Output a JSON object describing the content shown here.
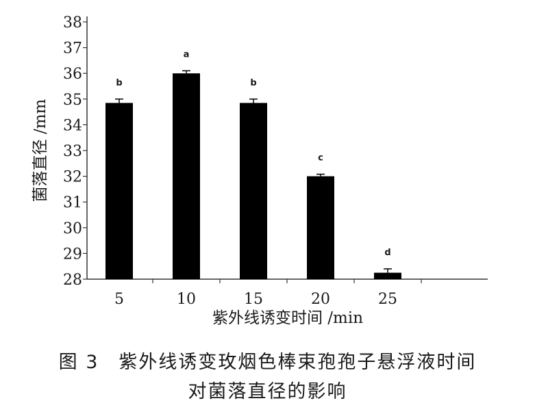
{
  "chart_data": {
    "type": "bar",
    "categories": [
      "5",
      "10",
      "15",
      "20",
      "25"
    ],
    "values": [
      34.85,
      36.0,
      34.85,
      32.0,
      28.25
    ],
    "errors": [
      0.15,
      0.1,
      0.15,
      0.08,
      0.15
    ],
    "significance": [
      "b",
      "a",
      "b",
      "c",
      "d"
    ],
    "ylim": [
      28,
      38
    ],
    "yticks": [
      "28",
      "29",
      "30",
      "31",
      "32",
      "33",
      "34",
      "35",
      "36",
      "37",
      "38"
    ],
    "xlabel": "紫外线诱变时间 /min",
    "ylabel": "菌落直径 /mm",
    "bar_color": "#000000"
  },
  "caption": {
    "line1": "图 3　紫外线诱变玫烟色棒束孢孢子悬浮液时间",
    "line2": "对菌落直径的影响"
  }
}
